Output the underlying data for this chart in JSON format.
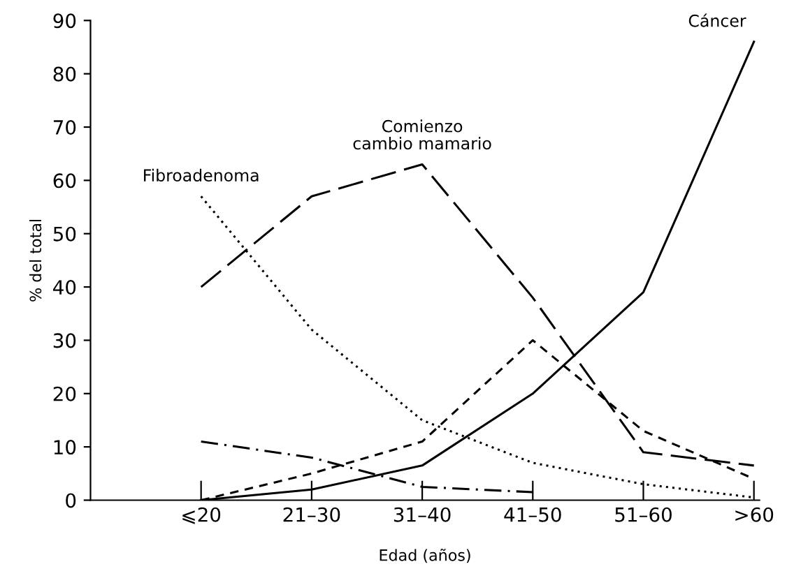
{
  "chart_data": {
    "type": "line",
    "xlabel": "Edad (años)",
    "ylabel": "% del total",
    "categories": [
      "⩽20",
      "21–30",
      "31–40",
      "41–50",
      "51–60",
      ">60"
    ],
    "ylim": [
      0,
      90
    ],
    "yticks": [
      0,
      10,
      20,
      30,
      40,
      50,
      60,
      70,
      80,
      90
    ],
    "grid": false,
    "legend": false,
    "marker": "none",
    "series": [
      {
        "name": "Cáncer",
        "color": "#000000",
        "line_style": "solid",
        "values": [
          0,
          2,
          6.5,
          20,
          39,
          86
        ]
      },
      {
        "name": "Comienzo\ncambio mamario",
        "color": "#000000",
        "line_style": "longdash",
        "values": [
          40,
          57,
          63,
          38,
          9,
          6.5
        ]
      },
      {
        "color": "#000000",
        "line_style": "dashed",
        "values": [
          0,
          5,
          11,
          30,
          13,
          4
        ]
      },
      {
        "name": "Fibroadenoma",
        "color": "#000000",
        "line_style": "dotted",
        "values": [
          57,
          32,
          15,
          7,
          3,
          0.5
        ]
      },
      {
        "color": "#000000",
        "line_style": "dashdot",
        "values": [
          11,
          8,
          2.5,
          1.5,
          null,
          null
        ]
      }
    ]
  }
}
